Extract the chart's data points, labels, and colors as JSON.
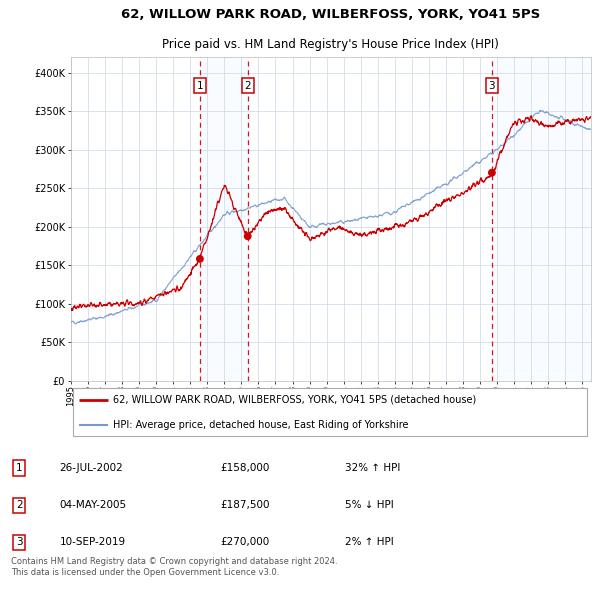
{
  "title": "62, WILLOW PARK ROAD, WILBERFOSS, YORK, YO41 5PS",
  "subtitle": "Price paid vs. HM Land Registry's House Price Index (HPI)",
  "legend_line1": "62, WILLOW PARK ROAD, WILBERFOSS, YORK, YO41 5PS (detached house)",
  "legend_line2": "HPI: Average price, detached house, East Riding of Yorkshire",
  "footer1": "Contains HM Land Registry data © Crown copyright and database right 2024.",
  "footer2": "This data is licensed under the Open Government Licence v3.0.",
  "transactions": [
    {
      "num": 1,
      "date": "26-JUL-2002",
      "price": 158000,
      "hpi_pct": "32% ↑ HPI",
      "date_decimal": 2002.57
    },
    {
      "num": 2,
      "date": "04-MAY-2005",
      "price": 187500,
      "hpi_pct": "5% ↓ HPI",
      "date_decimal": 2005.37
    },
    {
      "num": 3,
      "date": "10-SEP-2019",
      "price": 270000,
      "hpi_pct": "2% ↑ HPI",
      "date_decimal": 2019.69
    }
  ],
  "ylim": [
    0,
    420000
  ],
  "yticks": [
    0,
    50000,
    100000,
    150000,
    200000,
    250000,
    300000,
    350000,
    400000
  ],
  "ytick_labels": [
    "£0",
    "£50K",
    "£100K",
    "£150K",
    "£200K",
    "£250K",
    "£300K",
    "£350K",
    "£400K"
  ],
  "xlim_start": 1995.0,
  "xlim_end": 2025.5,
  "xtick_years": [
    1995,
    1996,
    1997,
    1998,
    1999,
    2000,
    2001,
    2002,
    2003,
    2004,
    2005,
    2006,
    2007,
    2008,
    2009,
    2010,
    2011,
    2012,
    2013,
    2014,
    2015,
    2016,
    2017,
    2018,
    2019,
    2020,
    2021,
    2022,
    2023,
    2024,
    2025
  ],
  "red_color": "#cc0000",
  "blue_color": "#7799cc",
  "bg_color": "#ffffff",
  "plot_bg_color": "#ffffff",
  "grid_color": "#c8d8e8",
  "shade_color": "#ddeeff",
  "title_fontsize": 9.5,
  "subtitle_fontsize": 8.5,
  "tick_fontsize": 7.0,
  "legend_fontsize": 7.0,
  "table_fontsize": 7.5,
  "footer_fontsize": 6.0
}
